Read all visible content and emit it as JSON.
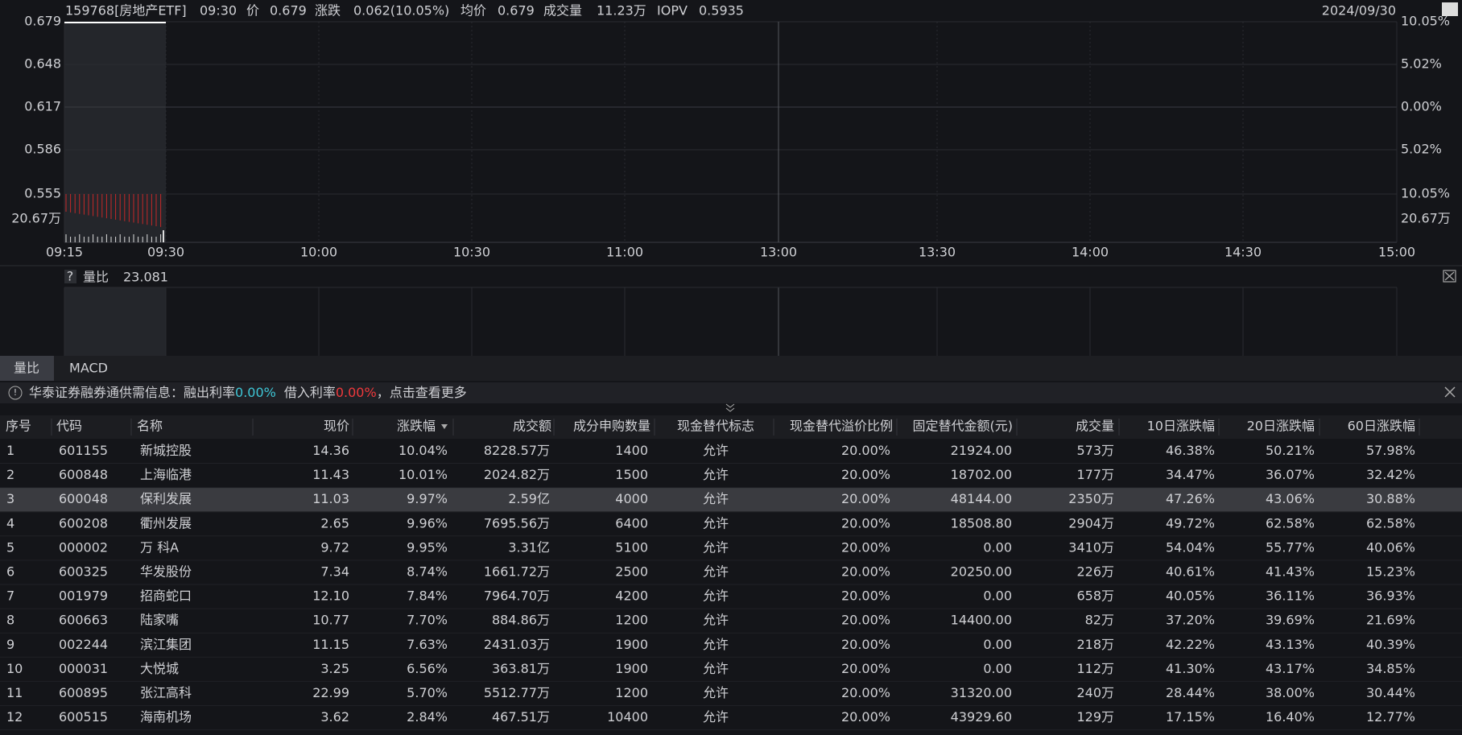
{
  "header": {
    "code": "159768[房地产ETF]",
    "time": "09:30",
    "price_label": "价",
    "price": "0.679",
    "change_label": "涨跌",
    "change": "0.062(10.05%)",
    "avg_label": "均价",
    "avg": "0.679",
    "volume_label": "成交量",
    "volume": "11.23万",
    "iopv_label": "IOPV",
    "iopv": "0.5935",
    "date": "2024/09/30"
  },
  "price_chart": {
    "left_axis": [
      "0.679",
      "0.648",
      "0.617",
      "0.586",
      "0.555",
      "20.67万"
    ],
    "right_axis": [
      "10.05%",
      "5.02%",
      "0.00%",
      "5.02%",
      "10.05%",
      "20.67万"
    ],
    "time_axis": [
      "09:15",
      "09:30",
      "10:00",
      "10:30",
      "11:00",
      "13:00",
      "13:30",
      "14:00",
      "14:30",
      "15:00"
    ]
  },
  "indicator_panel": {
    "help": "?",
    "name": "量比",
    "value": "23.081"
  },
  "tabs": [
    "量比",
    "MACD"
  ],
  "notice": {
    "text": "华泰证券融券通供需信息：融出利率",
    "rate1": "0.00%",
    "label2": "借入利率",
    "rate2": "0.00%",
    "tail": "，点击查看更多"
  },
  "table": {
    "headers": [
      "序号",
      "代码",
      "名称",
      "现价",
      "涨跌幅",
      "成交额",
      "成分申购数量",
      "现金替代标志",
      "现金替代溢价比例",
      "固定替代金额(元)",
      "成交量",
      "10日涨跌幅",
      "20日涨跌幅",
      "60日涨跌幅"
    ],
    "rows": [
      [
        "1",
        "601155",
        "新城控股",
        "14.36",
        "10.04%",
        "8228.57万",
        "1400",
        "允许",
        "20.00%",
        "21924.00",
        "573万",
        "46.38%",
        "50.21%",
        "57.98%"
      ],
      [
        "2",
        "600848",
        "上海临港",
        "11.43",
        "10.01%",
        "2024.82万",
        "1500",
        "允许",
        "20.00%",
        "18702.00",
        "177万",
        "34.47%",
        "36.07%",
        "32.42%"
      ],
      [
        "3",
        "600048",
        "保利发展",
        "11.03",
        "9.97%",
        "2.59亿",
        "4000",
        "允许",
        "20.00%",
        "48144.00",
        "2350万",
        "47.26%",
        "43.06%",
        "30.88%"
      ],
      [
        "4",
        "600208",
        "衢州发展",
        "2.65",
        "9.96%",
        "7695.56万",
        "6400",
        "允许",
        "20.00%",
        "18508.80",
        "2904万",
        "49.72%",
        "62.58%",
        "62.58%"
      ],
      [
        "5",
        "000002",
        "万 科A",
        "9.72",
        "9.95%",
        "3.31亿",
        "5100",
        "允许",
        "20.00%",
        "0.00",
        "3410万",
        "54.04%",
        "55.77%",
        "40.06%"
      ],
      [
        "6",
        "600325",
        "华发股份",
        "7.34",
        "8.74%",
        "1661.72万",
        "2500",
        "允许",
        "20.00%",
        "20250.00",
        "226万",
        "40.61%",
        "41.43%",
        "15.23%"
      ],
      [
        "7",
        "001979",
        "招商蛇口",
        "12.10",
        "7.84%",
        "7964.70万",
        "4200",
        "允许",
        "20.00%",
        "0.00",
        "658万",
        "40.05%",
        "36.11%",
        "36.93%"
      ],
      [
        "8",
        "600663",
        "陆家嘴",
        "10.77",
        "7.70%",
        "884.86万",
        "1200",
        "允许",
        "20.00%",
        "14400.00",
        "82万",
        "37.20%",
        "39.69%",
        "21.69%"
      ],
      [
        "9",
        "002244",
        "滨江集团",
        "11.15",
        "7.63%",
        "2431.03万",
        "1900",
        "允许",
        "20.00%",
        "0.00",
        "218万",
        "42.22%",
        "43.13%",
        "40.39%"
      ],
      [
        "10",
        "000031",
        "大悦城",
        "3.25",
        "6.56%",
        "363.81万",
        "1900",
        "允许",
        "20.00%",
        "0.00",
        "112万",
        "41.30%",
        "43.17%",
        "34.85%"
      ],
      [
        "11",
        "600895",
        "张江高科",
        "22.99",
        "5.70%",
        "5512.77万",
        "1200",
        "允许",
        "20.00%",
        "31320.00",
        "240万",
        "28.44%",
        "38.00%",
        "30.44%"
      ],
      [
        "12",
        "600515",
        "海南机场",
        "3.62",
        "2.84%",
        "467.51万",
        "10400",
        "允许",
        "20.00%",
        "43929.60",
        "129万",
        "17.15%",
        "16.40%",
        "12.77%"
      ]
    ]
  }
}
